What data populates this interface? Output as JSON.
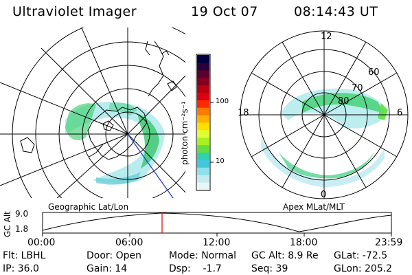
{
  "header": {
    "instrument": "Ultraviolet Imager",
    "date": "19 Oct 07",
    "time": "08:14:43 UT"
  },
  "geo_panel": {
    "label": "Geographic Lat/Lon"
  },
  "mag_panel": {
    "label": "Apex MLat/MLT",
    "mlt_labels": [
      "12",
      "18",
      "6",
      "0"
    ],
    "mlat_labels": [
      "60",
      "70",
      "80"
    ]
  },
  "colorbar": {
    "unit_label": "photon cm⁻²s⁻¹",
    "ticks": [
      "100",
      "10"
    ],
    "colors": [
      "#000040",
      "#2a003a",
      "#5a0030",
      "#880020",
      "#b80010",
      "#dd0010",
      "#ff2a00",
      "#ff7a00",
      "#ffb000",
      "#ffe000",
      "#e0ff30",
      "#a8f020",
      "#60e040",
      "#30d0b0",
      "#40c8e0",
      "#8ee0ea",
      "#c4ecf0",
      "#e8f6f8"
    ]
  },
  "altitude_plot": {
    "ylabel": "GC Alt",
    "y_ticks": [
      "9.0",
      "1.8"
    ],
    "x_ticks": [
      "00:00",
      "06:00",
      "12:00",
      "18:00",
      "23:59"
    ],
    "marker_time": "08:14"
  },
  "status": {
    "flt": "Flt: LBHL",
    "ip": "IP: 36.0",
    "door": "Door: Open",
    "gain": "Gain: 14",
    "mode": "Mode: Normal",
    "dsp": "Dsp:    -1.7",
    "gc_alt": "GC Alt: 8.9 Re",
    "seq": "Seq: 39",
    "glat": "GLat: -72.5",
    "glon": "GLon: 205.2"
  }
}
